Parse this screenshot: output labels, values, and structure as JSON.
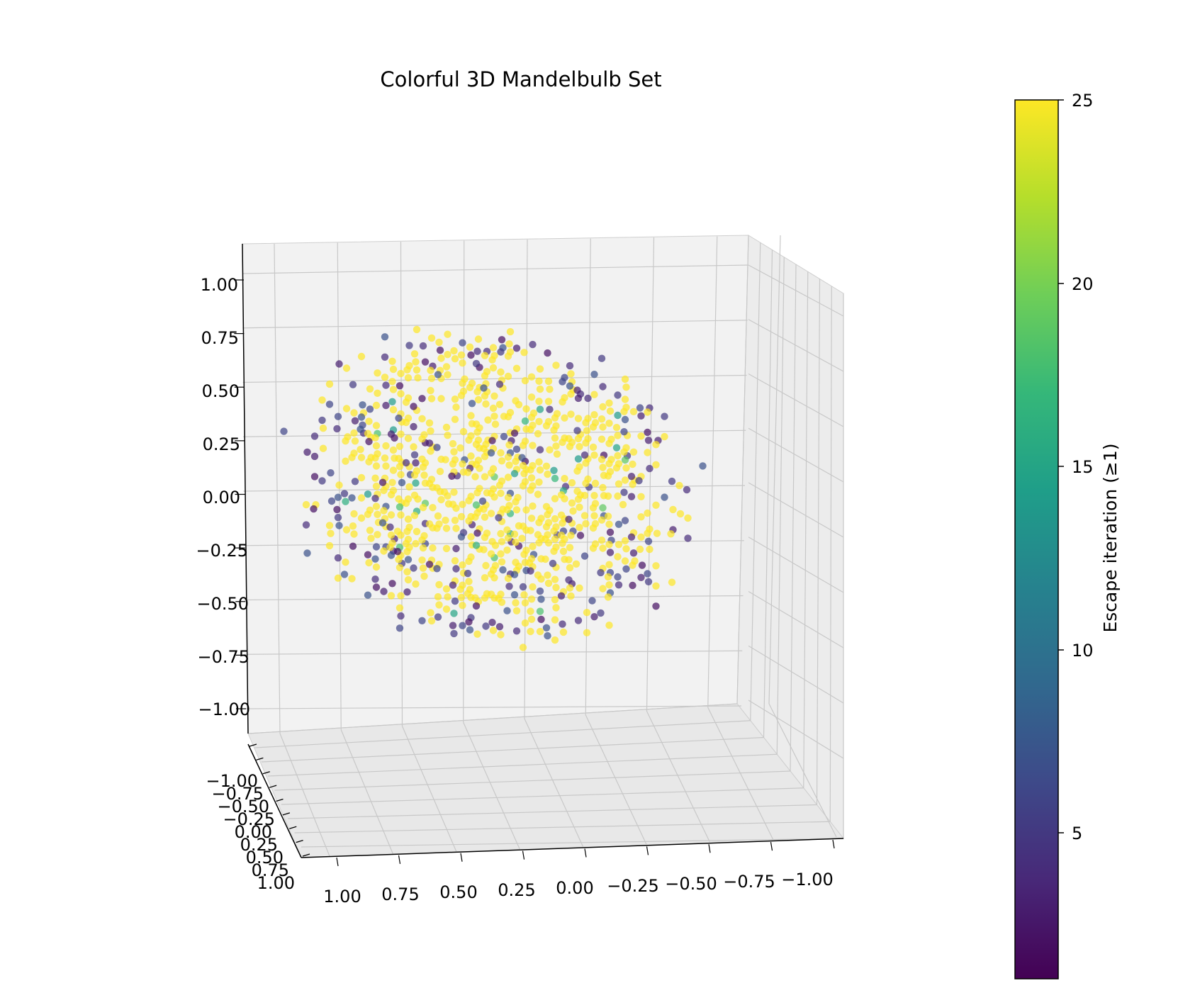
{
  "chart_data": {
    "type": "scatter",
    "projection": "3d",
    "title": "Colorful 3D Mandelbulb Set",
    "xlabel": "",
    "ylabel": "",
    "zlabel": "",
    "x_ticks": [
      "1.00",
      "0.75",
      "0.50",
      "0.25",
      "0.00",
      "−0.25",
      "−0.50",
      "−0.75",
      "−1.00"
    ],
    "y_ticks": [
      "−1.00",
      "−0.75",
      "−0.50",
      "−0.25",
      "0.00",
      "0.25",
      "0.50",
      "0.75",
      "1.00"
    ],
    "z_ticks": [
      "1.00",
      "0.75",
      "0.50",
      "0.25",
      "0.00",
      "−0.25",
      "−0.50",
      "−0.75",
      "−1.00"
    ],
    "xlim": [
      -1.1,
      1.1
    ],
    "ylim": [
      -1.1,
      1.1
    ],
    "zlim": [
      -1.1,
      1.1
    ],
    "grid": true,
    "marker_alpha": 0.7,
    "colormap": "viridis",
    "colormap_stops": [
      "#440154",
      "#482878",
      "#3e4989",
      "#31688e",
      "#26828e",
      "#1f9e89",
      "#35b779",
      "#6ece58",
      "#b5de2b",
      "#fde725"
    ],
    "color_range": [
      1,
      25
    ],
    "colorbar": {
      "label": "Escape iteration (≥1)",
      "ticks": [
        "5",
        "10",
        "15",
        "20",
        "25"
      ],
      "tick_values": [
        5,
        10,
        15,
        20,
        25
      ]
    },
    "points_note": "Dense cubic lattice of points (spacing ~0.1) filling a bulbous Mandelbulb shape within roughly [-0.9, 0.9] on each axis; most points reach the maximum escape iteration 25 (yellow), with scattered points at low iterations 2-8 (purple) and some at 15-19 (green).",
    "series": [
      {
        "name": "",
        "lattice_step": 0.1,
        "points": [
          {
            "x": 0.0,
            "y": 0.0,
            "z": 0.0,
            "c": 25
          },
          {
            "x": 0.3,
            "y": -0.2,
            "z": 0.5,
            "c": 25
          },
          {
            "x": -0.4,
            "y": 0.3,
            "z": 0.6,
            "c": 4
          },
          {
            "x": 0.5,
            "y": 0.4,
            "z": -0.6,
            "c": 25
          },
          {
            "x": -0.6,
            "y": -0.1,
            "z": 0.1,
            "c": 3
          },
          {
            "x": 0.7,
            "y": 0.0,
            "z": 0.2,
            "c": 17
          },
          {
            "x": -0.8,
            "y": 0.2,
            "z": 0.0,
            "c": 5
          }
        ]
      }
    ]
  }
}
